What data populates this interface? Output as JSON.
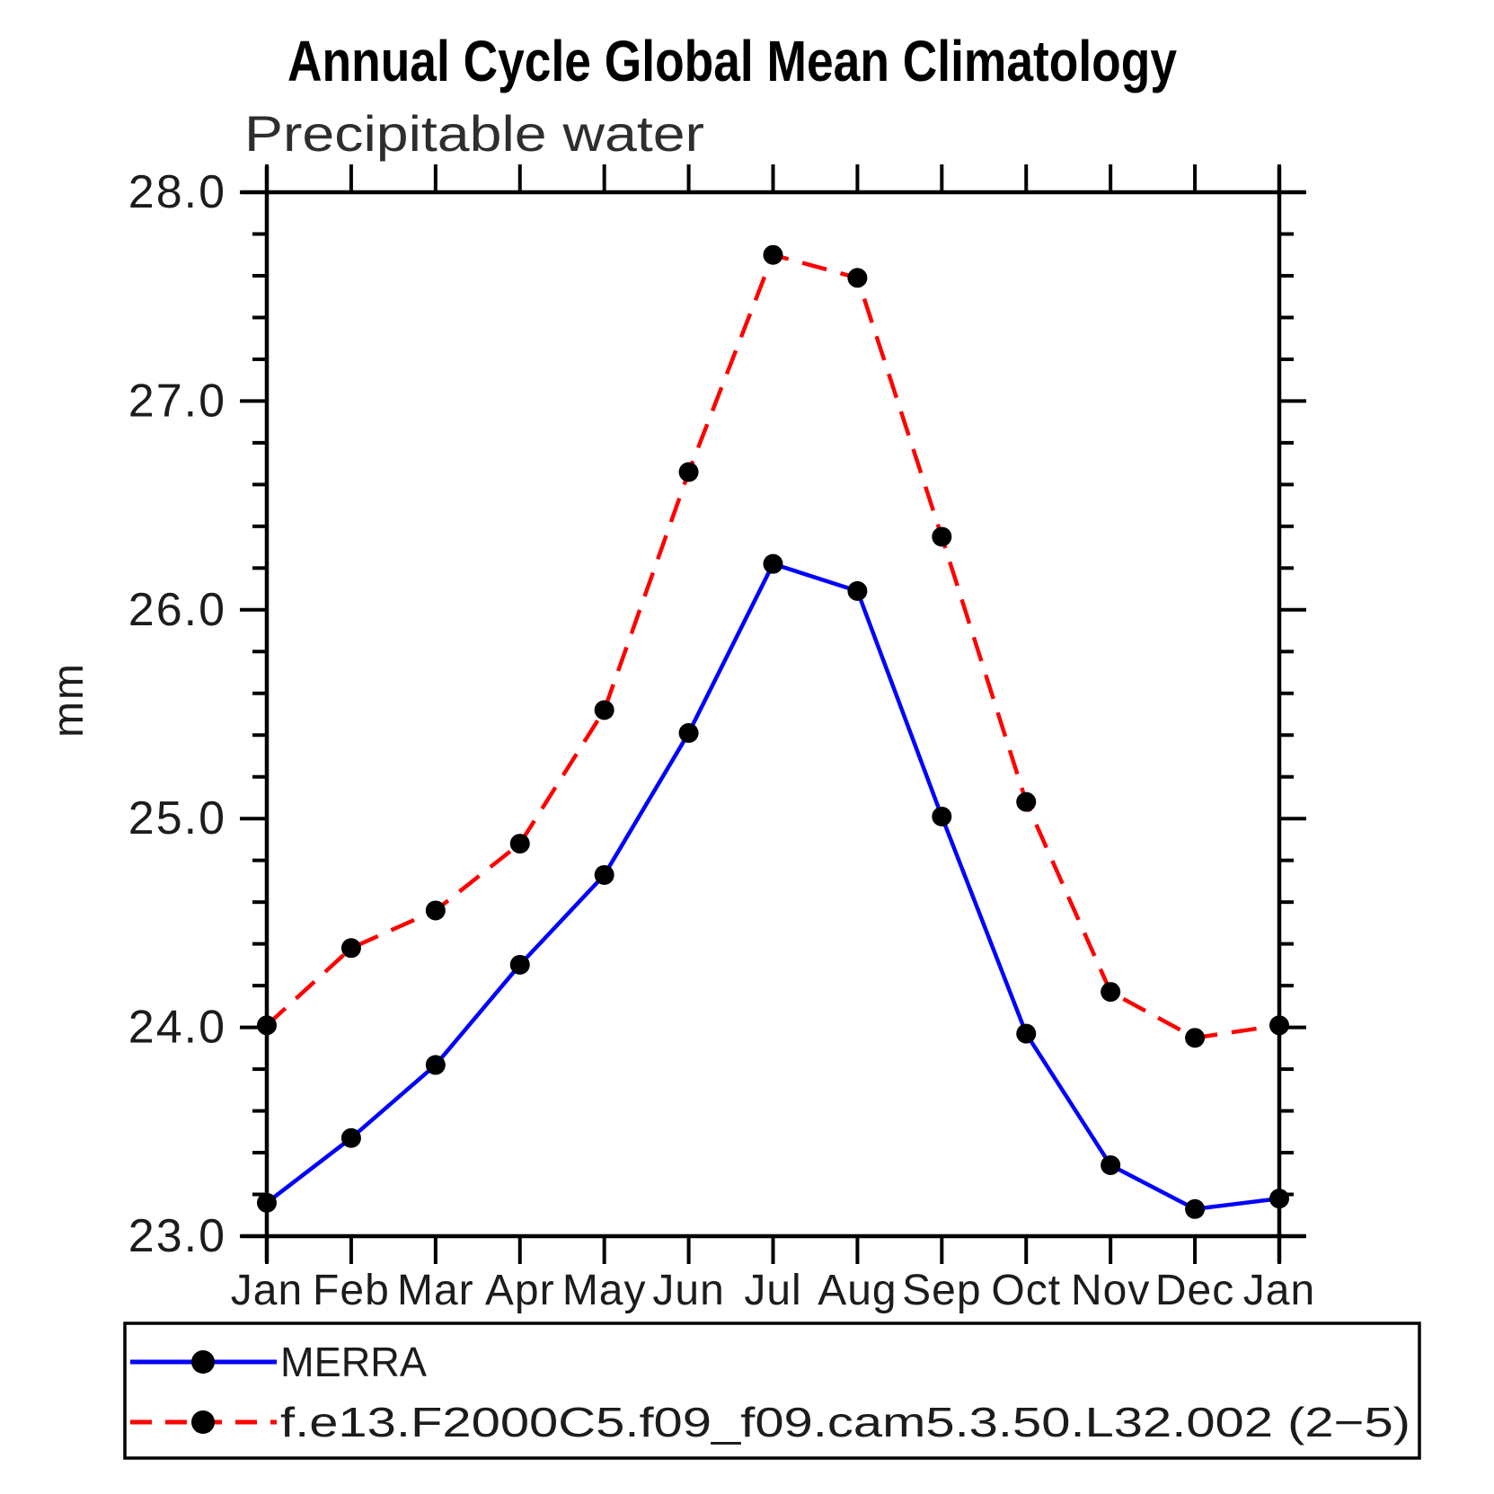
{
  "title": "Annual Cycle Global Mean Climatology",
  "chart_data": {
    "type": "line",
    "title": "Annual Cycle Global Mean Climatology",
    "subtitle": "Precipitable water",
    "ylabel": "mm",
    "xlabel": "",
    "x_categories": [
      "Jan",
      "Feb",
      "Mar",
      "Apr",
      "May",
      "Jun",
      "Jul",
      "Aug",
      "Sep",
      "Oct",
      "Nov",
      "Dec",
      "Jan"
    ],
    "ylim": [
      23.0,
      28.0
    ],
    "y_major_step": 1.0,
    "y_minor_step": 0.2,
    "y_tick_format_decimals": 1,
    "grid": false,
    "legend_position": "bottom",
    "series": [
      {
        "name": "MERRA",
        "color": "#0000ff",
        "style": "solid",
        "marker": "filled-circle",
        "marker_color": "#000000",
        "values": [
          23.16,
          23.47,
          23.82,
          24.3,
          24.73,
          25.41,
          26.22,
          26.09,
          25.01,
          23.97,
          23.34,
          23.13,
          23.18
        ]
      },
      {
        "name": "f.e13.F2000C5.f09_f09.cam5.3.50.L32.002 (2−5)",
        "color": "#ff0000",
        "style": "dashed",
        "marker": "filled-circle",
        "marker_color": "#000000",
        "values": [
          24.01,
          24.38,
          24.56,
          24.88,
          25.52,
          26.66,
          27.7,
          27.59,
          26.35,
          25.08,
          24.17,
          23.95,
          24.01
        ]
      }
    ]
  }
}
